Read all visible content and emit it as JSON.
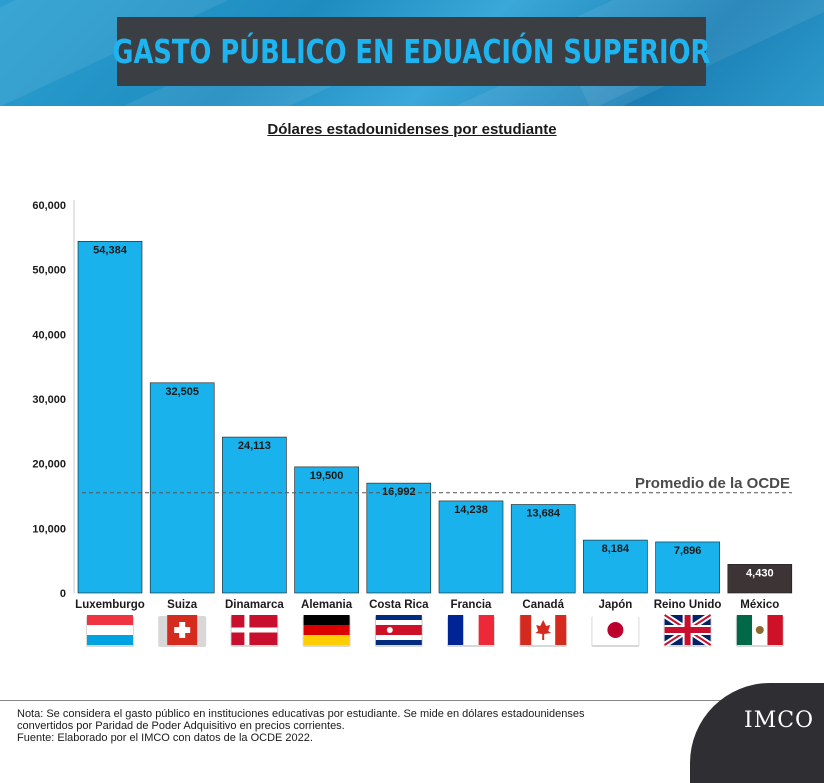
{
  "header": {
    "title": "GASTO PÚBLICO EN EDUACIÓN SUPERIOR"
  },
  "subtitle": "Dólares estadounidenses por estudiante",
  "chart_data": {
    "type": "bar",
    "title": "Dólares estadounidenses por estudiante",
    "categories": [
      "Luxemburgo",
      "Suiza",
      "Dinamarca",
      "Alemania",
      "Costa Rica",
      "Francia",
      "Canadá",
      "Japón",
      "Reino Unido",
      "México"
    ],
    "values": [
      54384,
      32505,
      24113,
      19500,
      16992,
      14238,
      13684,
      8184,
      7896,
      4430
    ],
    "value_labels": [
      "54,384",
      "32,505",
      "24,113",
      "19,500",
      "16,992",
      "14,238",
      "13,684",
      "8,184",
      "7,896",
      "4,430"
    ],
    "yticks": [
      0,
      10000,
      20000,
      30000,
      40000,
      50000,
      60000
    ],
    "ytick_labels": [
      "0",
      "10,000",
      "20,000",
      "30,000",
      "40,000",
      "50,000",
      "60,000"
    ],
    "ylim": [
      0,
      60000
    ],
    "reference_line": {
      "label": "Promedio de la OCDE",
      "value": 15500
    },
    "highlight": "México",
    "colors": {
      "bar": "#1ab2ec",
      "highlight": "#3d3436",
      "reference": "#555555"
    },
    "flags": [
      "luxembourg-flag",
      "switzerland-flag",
      "denmark-flag",
      "germany-flag",
      "costa-rica-flag",
      "france-flag",
      "canada-flag",
      "japan-flag",
      "uk-flag",
      "mexico-flag"
    ]
  },
  "footer": {
    "note_line1": "Nota: Se considera el gasto público en instituciones educativas por estudiante. Se mide en dólares estadounidenses",
    "note_line2": "convertidos por Paridad de Poder Adquisitivo en precios corrientes.",
    "source": "Fuente: Elaborado por el IMCO con datos de la OCDE 2022.",
    "logo": "IMCO"
  }
}
